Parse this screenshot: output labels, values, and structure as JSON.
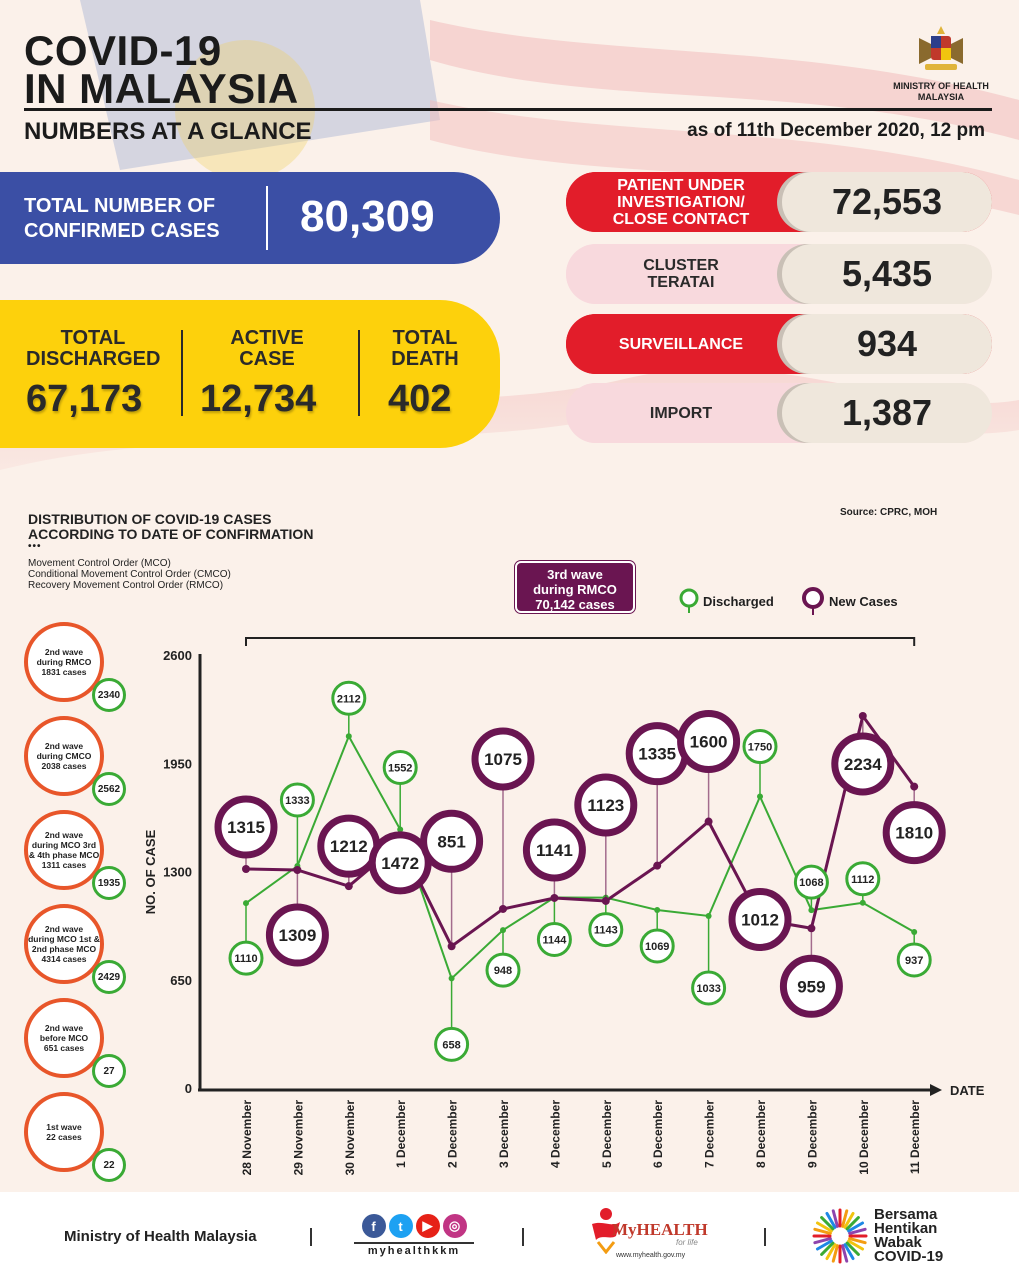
{
  "header": {
    "title_line1": "COVID-19",
    "title_line2": "IN MALAYSIA",
    "subtitle": "NUMBERS AT A GLANCE",
    "as_of": "as of 11th December 2020, 12 pm",
    "ministry_line1": "MINISTRY OF HEALTH",
    "ministry_line2": "MALAYSIA"
  },
  "confirmed": {
    "label_line1": "TOTAL NUMBER OF",
    "label_line2": "CONFIRMED CASES",
    "value": "80,309"
  },
  "summary": {
    "discharged_label1": "TOTAL",
    "discharged_label2": "DISCHARGED",
    "discharged_value": "67,173",
    "active_label1": "ACTIVE",
    "active_label2": "CASE",
    "active_value": "12,734",
    "death_label1": "TOTAL",
    "death_label2": "DEATH",
    "death_value": "402"
  },
  "categories": [
    {
      "label1": "PATIENT UNDER",
      "label2": "INVESTIGATION/",
      "label3": "CLOSE CONTACT",
      "value": "72,553",
      "style": "red"
    },
    {
      "label1": "CLUSTER",
      "label2": "TERATAI",
      "label3": "",
      "value": "5,435",
      "style": "pink"
    },
    {
      "label1": "SURVEILLANCE",
      "label2": "",
      "label3": "",
      "value": "934",
      "style": "red"
    },
    {
      "label1": "IMPORT",
      "label2": "",
      "label3": "",
      "value": "1,387",
      "style": "pink"
    }
  ],
  "chart_section": {
    "title_line1": "DISTRIBUTION OF COVID-19 CASES",
    "title_line2": "ACCORDING TO DATE OF CONFIRMATION",
    "dots": "•••",
    "mco1": "Movement Control Order (MCO)",
    "mco2": "Conditional Movement Control Order (CMCO)",
    "mco3": "Recovery Movement Control Order (RMCO)",
    "source": "Source: CPRC, MOH",
    "wave_line1": "3rd wave",
    "wave_line2": "during RMCO",
    "wave_line3": "70,142 cases",
    "legend_discharged": "Discharged",
    "legend_new": "New Cases"
  },
  "wave_circles": [
    {
      "line1": "2nd wave",
      "line2": "during RMCO",
      "line3": "1831 cases",
      "badge": "2340"
    },
    {
      "line1": "2nd wave",
      "line2": "during CMCO",
      "line3": "2038 cases",
      "badge": "2562"
    },
    {
      "line1": "2nd wave",
      "line2": "during MCO 3rd",
      "line3": "& 4th phase MCO",
      "line4": "1311 cases",
      "badge": "1935"
    },
    {
      "line1": "2nd wave",
      "line2": "during MCO 1st &",
      "line3": "2nd phase MCO",
      "line4": "4314 cases",
      "badge": "2429"
    },
    {
      "line1": "2nd wave",
      "line2": "before MCO",
      "line3": "651 cases",
      "badge": "27"
    },
    {
      "line1": "1st wave",
      "line2": "22 cases",
      "line3": "",
      "badge": "22"
    }
  ],
  "chart_data": {
    "type": "line",
    "xlabel": "DATE",
    "ylabel": "NO. OF CASE",
    "ylim": [
      0,
      2600
    ],
    "yticks": [
      0,
      650,
      1300,
      1950,
      2600
    ],
    "categories": [
      "28 November",
      "29 November",
      "30 November",
      "1 December",
      "2 December",
      "3 December",
      "4 December",
      "5 December",
      "6 December",
      "7 December",
      "8 December",
      "9 December",
      "10 December",
      "11 December"
    ],
    "series": [
      {
        "name": "New Cases",
        "color": "#6a1551",
        "values": [
          1315,
          1309,
          1212,
          1472,
          851,
          1075,
          1141,
          1123,
          1335,
          1600,
          1012,
          959,
          2234,
          1810
        ]
      },
      {
        "name": "Discharged",
        "color": "#3aaa35",
        "values": [
          1110,
          1333,
          2112,
          1552,
          658,
          948,
          1144,
          1143,
          1069,
          1033,
          1750,
          1068,
          1112,
          937
        ]
      }
    ]
  },
  "footer": {
    "ministry": "Ministry of Health Malaysia",
    "social_handle": "myhealthkkm",
    "myhealth": "MyHEALTH",
    "myhealth_tag": "for life",
    "myhealth_url": "www.myhealth.gov.my",
    "bersama1": "Bersama",
    "bersama2": "Hentikan",
    "bersama3": "Wabak",
    "bersama4": "COVID-19"
  }
}
